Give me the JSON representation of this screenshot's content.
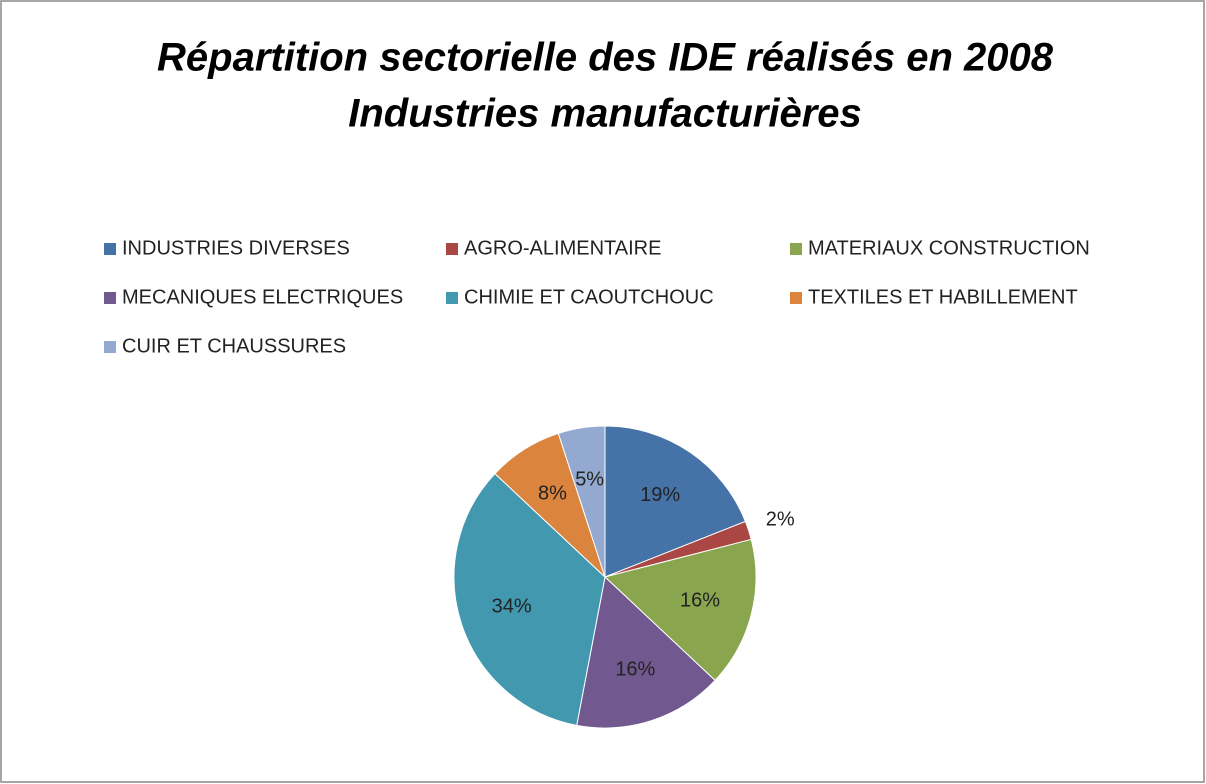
{
  "chart_data": {
    "type": "pie",
    "title": "Répartition sectorielle des IDE réalisés en 2008",
    "subtitle": "Industries manufacturières",
    "categories": [
      "INDUSTRIES DIVERSES",
      "AGRO-ALIMENTAIRE",
      "MATERIAUX CONSTRUCTION",
      "MECANIQUES ELECTRIQUES",
      "CHIMIE ET CAOUTCHOUC",
      "TEXTILES ET HABILLEMENT",
      "CUIR ET CHAUSSURES"
    ],
    "values": [
      19,
      2,
      16,
      16,
      34,
      8,
      5
    ],
    "value_labels": [
      "19%",
      "2%",
      "16%",
      "16%",
      "34%",
      "8%",
      "5%"
    ],
    "colors": [
      "#4572a7",
      "#aa4643",
      "#89a54e",
      "#71588f",
      "#4198af",
      "#db843d",
      "#93a9cf"
    ],
    "legend": "top"
  }
}
